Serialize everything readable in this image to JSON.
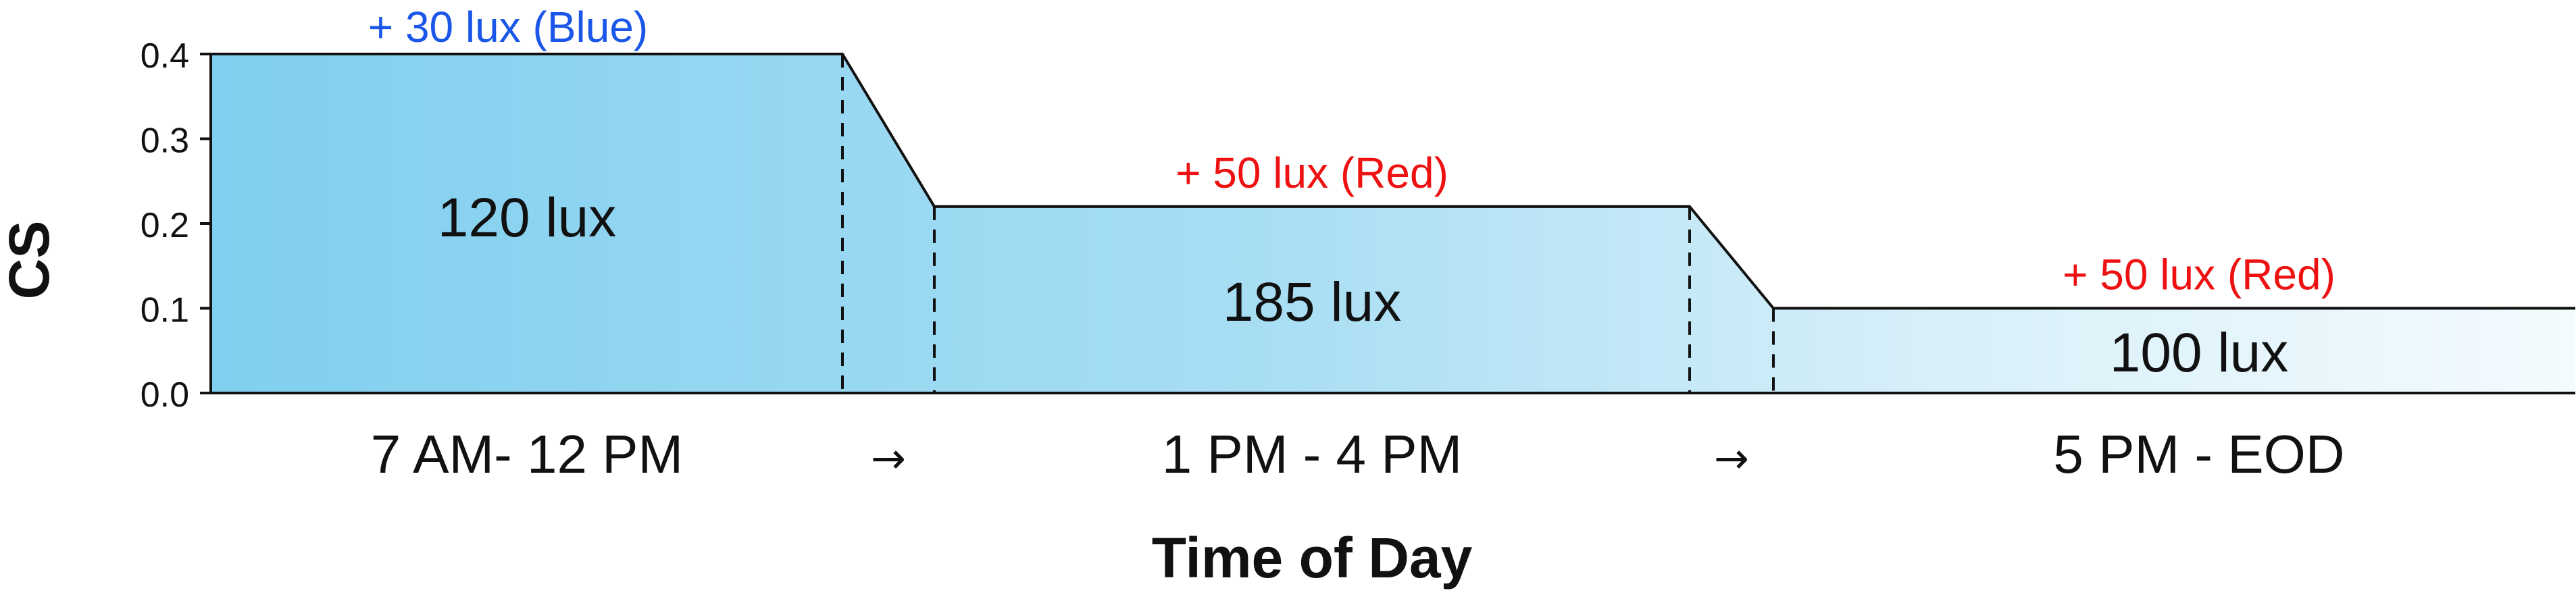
{
  "chart_data": {
    "type": "area",
    "ylabel": "CS",
    "xlabel": "Time of Day",
    "ylim": [
      0,
      0.4
    ],
    "yticks": [
      "0.0",
      "0.1",
      "0.2",
      "0.3",
      "0.4"
    ],
    "grid": false,
    "segments": [
      {
        "period": "7 AM- 12 PM",
        "cs": 0.4,
        "lux_label": "120 lux",
        "extra": "+ 30 lux (Blue)",
        "extra_color": "#1a56e8"
      },
      {
        "period": "1 PM - 4 PM",
        "cs": 0.22,
        "lux_label": "185 lux",
        "extra": "+ 50 lux (Red)",
        "extra_color": "#ee1111"
      },
      {
        "period": "5 PM - EOD",
        "cs": 0.1,
        "lux_label": "100 lux",
        "extra": "+ 50 lux (Red)",
        "extra_color": "#ee1111"
      }
    ],
    "transitions": [
      "→",
      "→"
    ]
  }
}
